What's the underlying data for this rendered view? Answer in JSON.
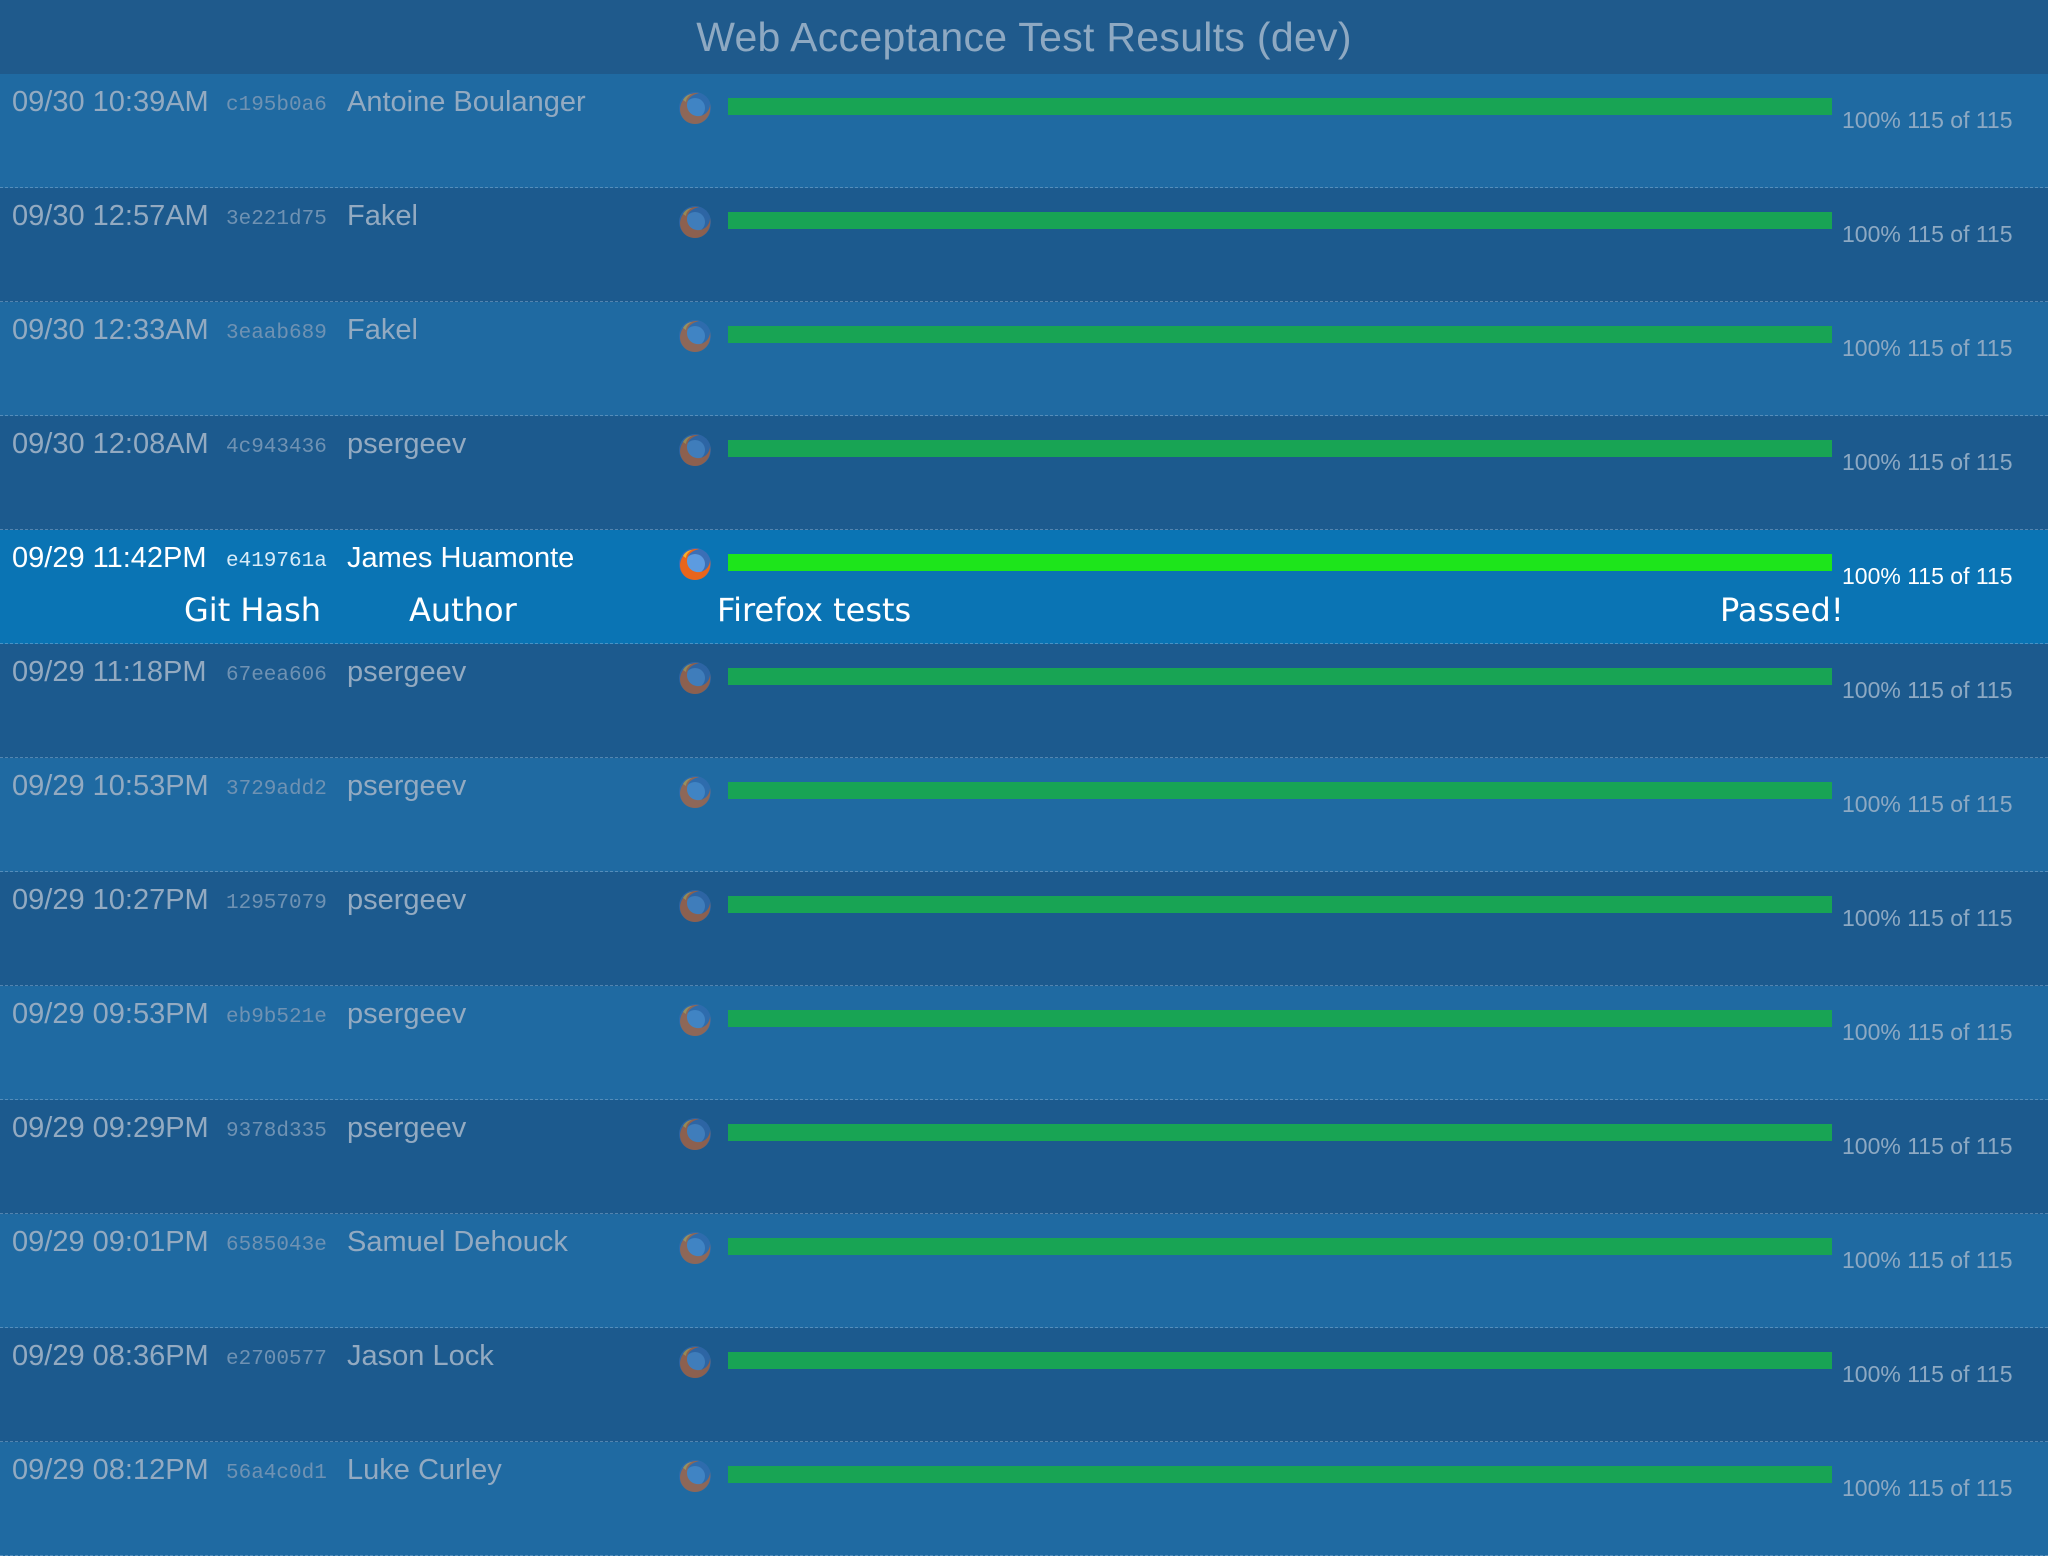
{
  "page": {
    "title": "Web Acceptance Test Results (dev)"
  },
  "colors": {
    "background": "#1d5f94",
    "row_alt": "#1f6aa2",
    "row_highlight": "#0a74b4",
    "bar_pass_dim": "#18a454",
    "bar_pass_bright": "#1de51b",
    "text_dim": "#93aac1"
  },
  "browser_icon": "firefox-icon",
  "annotations": {
    "git_hash": "Git Hash",
    "author": "Author",
    "firefox_tests": "Firefox tests",
    "passed": "Passed!"
  },
  "runs": [
    {
      "date": "09/30 10:39AM",
      "hash": "c195b0a6",
      "author": "Antoine Boulanger",
      "percent_label": "100%",
      "count_label": "115 of 115",
      "progress": 1.0
    },
    {
      "date": "09/30 12:57AM",
      "hash": "3e221d75",
      "author": "Fakel",
      "percent_label": "100%",
      "count_label": "115 of 115",
      "progress": 1.0
    },
    {
      "date": "09/30 12:33AM",
      "hash": "3eaab689",
      "author": "Fakel",
      "percent_label": "100%",
      "count_label": "115 of 115",
      "progress": 1.0
    },
    {
      "date": "09/30 12:08AM",
      "hash": "4c943436",
      "author": "psergeev",
      "percent_label": "100%",
      "count_label": "115 of 115",
      "progress": 1.0
    },
    {
      "date": "09/29 11:42PM",
      "hash": "e419761a",
      "author": "James Huamonte",
      "percent_label": "100%",
      "count_label": "115 of 115",
      "progress": 1.0,
      "highlighted": true
    },
    {
      "date": "09/29 11:18PM",
      "hash": "67eea606",
      "author": "psergeev",
      "percent_label": "100%",
      "count_label": "115 of 115",
      "progress": 1.0
    },
    {
      "date": "09/29 10:53PM",
      "hash": "3729add2",
      "author": "psergeev",
      "percent_label": "100%",
      "count_label": "115 of 115",
      "progress": 1.0
    },
    {
      "date": "09/29 10:27PM",
      "hash": "12957079",
      "author": "psergeev",
      "percent_label": "100%",
      "count_label": "115 of 115",
      "progress": 1.0
    },
    {
      "date": "09/29 09:53PM",
      "hash": "eb9b521e",
      "author": "psergeev",
      "percent_label": "100%",
      "count_label": "115 of 115",
      "progress": 1.0
    },
    {
      "date": "09/29 09:29PM",
      "hash": "9378d335",
      "author": "psergeev",
      "percent_label": "100%",
      "count_label": "115 of 115",
      "progress": 1.0
    },
    {
      "date": "09/29 09:01PM",
      "hash": "6585043e",
      "author": "Samuel Dehouck",
      "percent_label": "100%",
      "count_label": "115 of 115",
      "progress": 1.0
    },
    {
      "date": "09/29 08:36PM",
      "hash": "e2700577",
      "author": "Jason Lock",
      "percent_label": "100%",
      "count_label": "115 of 115",
      "progress": 1.0
    },
    {
      "date": "09/29 08:12PM",
      "hash": "56a4c0d1",
      "author": "Luke Curley",
      "percent_label": "100%",
      "count_label": "115 of 115",
      "progress": 1.0
    }
  ]
}
